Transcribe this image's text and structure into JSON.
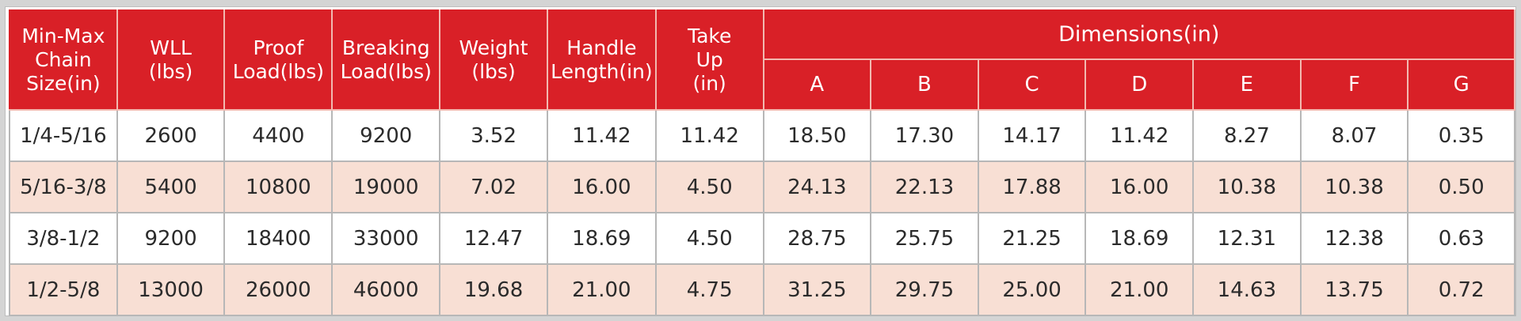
{
  "headers": {
    "size": [
      "Min-Max",
      "Chain",
      "Size(in)"
    ],
    "wll": [
      "WLL",
      "(lbs)"
    ],
    "proof": [
      "Proof",
      "Load(lbs)"
    ],
    "breaking": [
      "Breaking",
      "Load(lbs)"
    ],
    "weight": [
      "Weight",
      "(lbs)"
    ],
    "handle": [
      "Handle",
      "Length(in)"
    ],
    "takeup": [
      "Take",
      "Up",
      "(in)"
    ],
    "dimensions": "Dimensions(in)",
    "dims": [
      "A",
      "B",
      "C",
      "D",
      "E",
      "F",
      "G"
    ]
  },
  "rows": [
    [
      "1/4-5/16",
      "2600",
      "4400",
      "9200",
      "3.52",
      "11.42",
      "11.42",
      "18.50",
      "17.30",
      "14.17",
      "11.42",
      "8.27",
      "8.07",
      "0.35"
    ],
    [
      "5/16-3/8",
      "5400",
      "10800",
      "19000",
      "7.02",
      "16.00",
      "4.50",
      "24.13",
      "22.13",
      "17.88",
      "16.00",
      "10.38",
      "10.38",
      "0.50"
    ],
    [
      "3/8-1/2",
      "9200",
      "18400",
      "33000",
      "12.47",
      "18.69",
      "4.50",
      "28.75",
      "25.75",
      "21.25",
      "18.69",
      "12.31",
      "12.38",
      "0.63"
    ],
    [
      "1/2-5/8",
      "13000",
      "26000",
      "46000",
      "19.68",
      "21.00",
      "4.75",
      "31.25",
      "29.75",
      "25.00",
      "21.00",
      "14.63",
      "13.75",
      "0.72"
    ]
  ],
  "colors": {
    "header_red": "#d92027",
    "band_pink": "#f8dfd4",
    "grid": "#b7b7b7"
  }
}
